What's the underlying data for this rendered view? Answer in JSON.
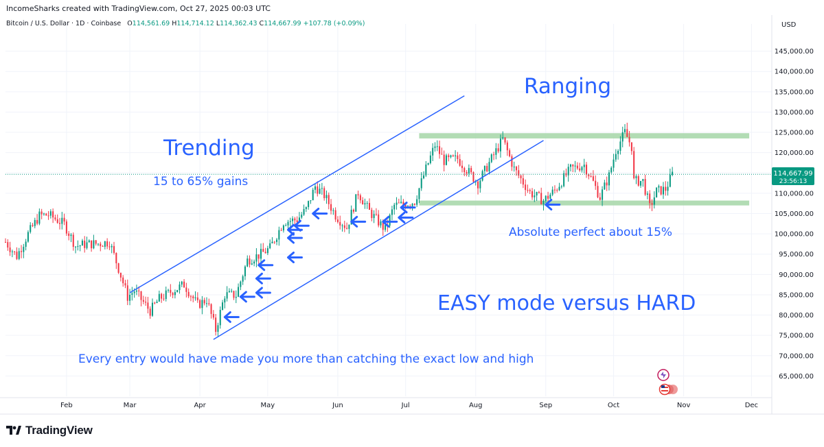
{
  "header": {
    "attribution": "IncomeSharks created with TradingView.com, Oct 27, 2025 00:03 UTC"
  },
  "legend": {
    "symbol": "Bitcoin / U.S. Dollar · 1D · Coinbase",
    "open_label": "O",
    "open": "114,561.69",
    "high_label": "H",
    "high": "114,714.12",
    "low_label": "L",
    "low": "114,362.43",
    "close_label": "C",
    "close": "114,667.99",
    "change": "+107.78 (+0.09%)"
  },
  "price_axis": {
    "currency": "USD",
    "last_price": "114,667.99",
    "countdown": "23:56:13"
  },
  "brand": {
    "name": "TradingView"
  },
  "colors": {
    "up": "#089981",
    "down": "#f23645",
    "annotation": "#2962ff",
    "range_band": "#a5d6a7",
    "last_price_tag": "#089981"
  },
  "chart_data": {
    "type": "candlestick",
    "symbol": "BTCUSD",
    "timeframe": "1D",
    "exchange": "Coinbase",
    "x_range": [
      "2025-01-05",
      "2025-12-10"
    ],
    "ylim": [
      60000,
      150000
    ],
    "y_ticks": [
      65000,
      70000,
      75000,
      80000,
      85000,
      90000,
      95000,
      100000,
      105000,
      110000,
      115000,
      120000,
      125000,
      130000,
      135000,
      140000,
      145000
    ],
    "y_tick_labels": [
      "65,000.00",
      "70,000.00",
      "75,000.00",
      "80,000.00",
      "85,000.00",
      "90,000.00",
      "95,000.00",
      "100,000.00",
      "105,000.00",
      "110,000.00",
      "115,000.00",
      "120,000.00",
      "125,000.00",
      "130,000.00",
      "135,000.00",
      "140,000.00",
      "145,000.00"
    ],
    "x_ticks": [
      {
        "date": "2025-02-01",
        "label": "Feb"
      },
      {
        "date": "2025-03-01",
        "label": "Mar"
      },
      {
        "date": "2025-04-01",
        "label": "Apr"
      },
      {
        "date": "2025-05-01",
        "label": "May"
      },
      {
        "date": "2025-06-01",
        "label": "Jun"
      },
      {
        "date": "2025-07-01",
        "label": "Jul"
      },
      {
        "date": "2025-08-01",
        "label": "Aug"
      },
      {
        "date": "2025-09-01",
        "label": "Sep"
      },
      {
        "date": "2025-10-01",
        "label": "Oct"
      },
      {
        "date": "2025-11-01",
        "label": "Nov"
      },
      {
        "date": "2025-12-01",
        "label": "Dec"
      }
    ],
    "close_path": [
      [
        "2025-01-05",
        98000
      ],
      [
        "2025-01-10",
        94500
      ],
      [
        "2025-01-15",
        100000
      ],
      [
        "2025-01-20",
        104500
      ],
      [
        "2025-01-24",
        104700
      ],
      [
        "2025-01-31",
        102400
      ],
      [
        "2025-02-05",
        97000
      ],
      [
        "2025-02-10",
        97500
      ],
      [
        "2025-02-15",
        97600
      ],
      [
        "2025-02-20",
        98000
      ],
      [
        "2025-02-24",
        91500
      ],
      [
        "2025-02-28",
        84500
      ],
      [
        "2025-03-03",
        86000
      ],
      [
        "2025-03-10",
        81000
      ],
      [
        "2025-03-14",
        84000
      ],
      [
        "2025-03-20",
        86000
      ],
      [
        "2025-03-25",
        87500
      ],
      [
        "2025-03-31",
        82500
      ],
      [
        "2025-04-04",
        83800
      ],
      [
        "2025-04-08",
        76300
      ],
      [
        "2025-04-12",
        85000
      ],
      [
        "2025-04-17",
        84900
      ],
      [
        "2025-04-22",
        93500
      ],
      [
        "2025-04-28",
        95000
      ],
      [
        "2025-05-02",
        96500
      ],
      [
        "2025-05-08",
        103000
      ],
      [
        "2025-05-14",
        103500
      ],
      [
        "2025-05-18",
        106000
      ],
      [
        "2025-05-22",
        111700
      ],
      [
        "2025-05-26",
        109500
      ],
      [
        "2025-05-31",
        104600
      ],
      [
        "2025-06-05",
        101500
      ],
      [
        "2025-06-10",
        110200
      ],
      [
        "2025-06-15",
        105500
      ],
      [
        "2025-06-22",
        101000
      ],
      [
        "2025-06-26",
        107000
      ],
      [
        "2025-06-30",
        107200
      ],
      [
        "2025-07-05",
        108000
      ],
      [
        "2025-07-10",
        116000
      ],
      [
        "2025-07-14",
        121900
      ],
      [
        "2025-07-18",
        118000
      ],
      [
        "2025-07-24",
        118500
      ],
      [
        "2025-08-02",
        112500
      ],
      [
        "2025-08-07",
        117500
      ],
      [
        "2025-08-13",
        123300
      ],
      [
        "2025-08-18",
        116000
      ],
      [
        "2025-08-25",
        110200
      ],
      [
        "2025-08-31",
        108200
      ],
      [
        "2025-09-05",
        110700
      ],
      [
        "2025-09-12",
        116000
      ],
      [
        "2025-09-18",
        117000
      ],
      [
        "2025-09-22",
        112700
      ],
      [
        "2025-09-25",
        109000
      ],
      [
        "2025-09-29",
        114300
      ],
      [
        "2025-10-02",
        120600
      ],
      [
        "2025-10-06",
        125000
      ],
      [
        "2025-10-09",
        121500
      ],
      [
        "2025-10-10",
        113000
      ],
      [
        "2025-10-14",
        113000
      ],
      [
        "2025-10-17",
        106500
      ],
      [
        "2025-10-20",
        110500
      ],
      [
        "2025-10-24",
        111000
      ],
      [
        "2025-10-27",
        114668
      ]
    ],
    "trend_channel": {
      "upper": [
        [
          "2025-03-01",
          85500
        ],
        [
          "2025-07-27",
          134000
        ]
      ],
      "lower": [
        [
          "2025-04-07",
          74000
        ],
        [
          "2025-08-31",
          123000
        ]
      ]
    },
    "range_bands": {
      "upper": [
        123500,
        124800
      ],
      "lower": [
        107000,
        108200
      ],
      "from": "2025-07-07",
      "to": "2025-11-30"
    },
    "entry_arrows": [
      [
        "2025-04-12",
        79500
      ],
      [
        "2025-04-19",
        84500
      ],
      [
        "2025-04-26",
        85500
      ],
      [
        "2025-04-26",
        89000
      ],
      [
        "2025-04-27",
        92300
      ],
      [
        "2025-05-10",
        94200
      ],
      [
        "2025-05-10",
        99000
      ],
      [
        "2025-05-10",
        101000
      ],
      [
        "2025-05-13",
        102000
      ],
      [
        "2025-05-21",
        105000
      ],
      [
        "2025-06-07",
        103000
      ],
      [
        "2025-06-21",
        103000
      ],
      [
        "2025-06-28",
        104000
      ],
      [
        "2025-06-29",
        106500
      ],
      [
        "2025-09-01",
        107200
      ]
    ],
    "annotations": {
      "trending": "Trending",
      "trending_gains": "15 to 65% gains",
      "ranging": "Ranging",
      "range_note": "Absolute perfect about 15%",
      "mode": "EASY mode versus HARD",
      "footer_note": "Every entry would have made you more than catching the exact low and high"
    }
  }
}
